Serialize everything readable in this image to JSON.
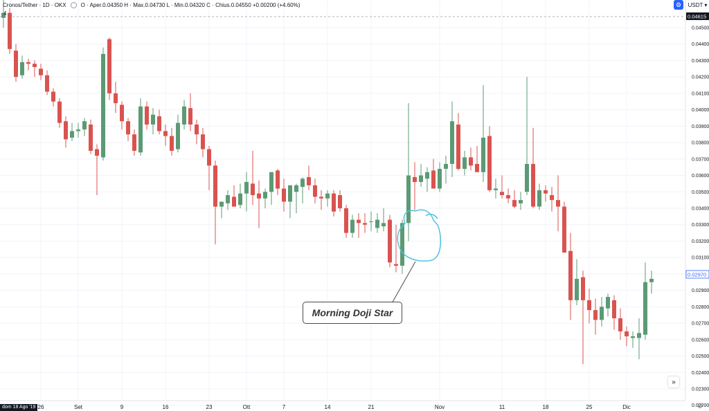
{
  "header": {
    "symbol_title": "Cronos/Tether · 1D · OKX",
    "collapse_marker": "4",
    "ohlc_summary": "O · Aper.0.04350  H · Max.0.04730  L · Min.0.04320  C · Chius.0.04550  +0.00200 (+4.60%)",
    "currency": "USDT"
  },
  "annotation": {
    "label": "Morning Doji Star",
    "circle_color": "#4fc3dc"
  },
  "colors": {
    "up": "#5b9a74",
    "down": "#d9534f",
    "grid": "#f0f3fa",
    "current_price_label": "#131722",
    "last_close_label_text": "#2962ff"
  },
  "price_labels": {
    "current": "0.04615",
    "last_close": "0.02970"
  },
  "x_axis": {
    "first_date_label": "dom 18 Ago '19"
  },
  "chart_data": {
    "type": "candlestick",
    "title": "Cronos/Tether · 1D · OKX",
    "ylim": [
      0.0222,
      0.0466
    ],
    "y_ticks": [
      "0.04500",
      "0.04400",
      "0.04300",
      "0.04200",
      "0.04100",
      "0.04000",
      "0.03900",
      "0.03800",
      "0.03700",
      "0.03600",
      "0.03500",
      "0.03400",
      "0.03300",
      "0.03200",
      "0.03100",
      "0.03000",
      "0.02900",
      "0.02800",
      "0.02700",
      "0.02600",
      "0.02500",
      "0.02400",
      "0.02300",
      "0.02200"
    ],
    "x_ticks": [
      {
        "label": "26",
        "index": 6
      },
      {
        "label": "Set",
        "index": 12
      },
      {
        "label": "9",
        "index": 19
      },
      {
        "label": "16",
        "index": 26
      },
      {
        "label": "23",
        "index": 33
      },
      {
        "label": "Ott",
        "index": 39
      },
      {
        "label": "7",
        "index": 45
      },
      {
        "label": "14",
        "index": 52
      },
      {
        "label": "21",
        "index": 59
      },
      {
        "label": "Nov",
        "index": 70
      },
      {
        "label": "11",
        "index": 80
      },
      {
        "label": "18",
        "index": 87
      },
      {
        "label": "25",
        "index": 94
      },
      {
        "label": "Dic",
        "index": 100
      }
    ],
    "candles": [
      [
        0.0456,
        0.047,
        0.045,
        0.0459
      ],
      [
        0.0459,
        0.0462,
        0.0434,
        0.0437
      ],
      [
        0.0436,
        0.044,
        0.0417,
        0.042
      ],
      [
        0.0421,
        0.0433,
        0.0419,
        0.0429
      ],
      [
        0.0429,
        0.0431,
        0.0424,
        0.0428
      ],
      [
        0.0428,
        0.043,
        0.042,
        0.0426
      ],
      [
        0.0425,
        0.0428,
        0.0418,
        0.0421
      ],
      [
        0.0421,
        0.0424,
        0.0409,
        0.0411
      ],
      [
        0.0411,
        0.0413,
        0.0402,
        0.0405
      ],
      [
        0.0405,
        0.0407,
        0.0389,
        0.0392
      ],
      [
        0.0393,
        0.0396,
        0.0377,
        0.0382
      ],
      [
        0.0383,
        0.0392,
        0.0381,
        0.0387
      ],
      [
        0.0387,
        0.0392,
        0.0383,
        0.0388
      ],
      [
        0.0388,
        0.0395,
        0.0384,
        0.0393
      ],
      [
        0.0391,
        0.0394,
        0.0373,
        0.0375
      ],
      [
        0.0376,
        0.0379,
        0.0348,
        0.0372
      ],
      [
        0.0371,
        0.0438,
        0.0369,
        0.0434
      ],
      [
        0.0443,
        0.0444,
        0.0406,
        0.041
      ],
      [
        0.041,
        0.0417,
        0.0398,
        0.0404
      ],
      [
        0.0403,
        0.0405,
        0.0388,
        0.0393
      ],
      [
        0.0393,
        0.0395,
        0.0381,
        0.0385
      ],
      [
        0.0385,
        0.0388,
        0.0372,
        0.0375
      ],
      [
        0.0374,
        0.0407,
        0.0372,
        0.0402
      ],
      [
        0.0402,
        0.0405,
        0.0388,
        0.0391
      ],
      [
        0.0391,
        0.0401,
        0.0385,
        0.0397
      ],
      [
        0.0396,
        0.04,
        0.0385,
        0.0387
      ],
      [
        0.0387,
        0.0391,
        0.0378,
        0.0384
      ],
      [
        0.0384,
        0.0389,
        0.0372,
        0.0375
      ],
      [
        0.0376,
        0.0397,
        0.0374,
        0.0392
      ],
      [
        0.0391,
        0.0406,
        0.0388,
        0.0402
      ],
      [
        0.0401,
        0.041,
        0.0387,
        0.0391
      ],
      [
        0.0391,
        0.0394,
        0.0379,
        0.0385
      ],
      [
        0.0385,
        0.0389,
        0.0371,
        0.0376
      ],
      [
        0.0376,
        0.0378,
        0.0351,
        0.0366
      ],
      [
        0.0366,
        0.0369,
        0.0318,
        0.0341
      ],
      [
        0.0341,
        0.0344,
        0.0334,
        0.0344
      ],
      [
        0.0343,
        0.0351,
        0.0339,
        0.0348
      ],
      [
        0.0347,
        0.0354,
        0.0341,
        0.0341
      ],
      [
        0.0342,
        0.0355,
        0.034,
        0.0349
      ],
      [
        0.0349,
        0.0362,
        0.0338,
        0.0356
      ],
      [
        0.0355,
        0.0375,
        0.0342,
        0.0348
      ],
      [
        0.0349,
        0.0357,
        0.0328,
        0.0346
      ],
      [
        0.0346,
        0.0352,
        0.034,
        0.035
      ],
      [
        0.035,
        0.0362,
        0.0342,
        0.0362
      ],
      [
        0.0363,
        0.0364,
        0.0348,
        0.0352
      ],
      [
        0.0352,
        0.0358,
        0.0338,
        0.0344
      ],
      [
        0.0344,
        0.0354,
        0.0334,
        0.0354
      ],
      [
        0.035,
        0.0355,
        0.0337,
        0.0354
      ],
      [
        0.0353,
        0.0359,
        0.0343,
        0.0358
      ],
      [
        0.0359,
        0.0366,
        0.0351,
        0.0354
      ],
      [
        0.0354,
        0.0358,
        0.0343,
        0.0347
      ],
      [
        0.0347,
        0.0351,
        0.0339,
        0.0346
      ],
      [
        0.0346,
        0.0351,
        0.0341,
        0.0349
      ],
      [
        0.0349,
        0.0351,
        0.0335,
        0.0338
      ],
      [
        0.0348,
        0.0351,
        0.0338,
        0.034
      ],
      [
        0.034,
        0.0342,
        0.0322,
        0.0325
      ],
      [
        0.0325,
        0.0336,
        0.0322,
        0.0333
      ],
      [
        0.0333,
        0.0337,
        0.0322,
        0.0331
      ],
      [
        0.0331,
        0.0337,
        0.0325,
        0.033
      ],
      [
        0.0332,
        0.0338,
        0.0326,
        0.0332
      ],
      [
        0.0328,
        0.0337,
        0.0325,
        0.0333
      ],
      [
        0.0329,
        0.034,
        0.0326,
        0.0331
      ],
      [
        0.0333,
        0.0336,
        0.0304,
        0.0307
      ],
      [
        0.0306,
        0.033,
        0.0301,
        0.0305
      ],
      [
        0.0305,
        0.0333,
        0.03,
        0.0331
      ],
      [
        0.0331,
        0.0404,
        0.032,
        0.036
      ],
      [
        0.0359,
        0.0368,
        0.0339,
        0.0356
      ],
      [
        0.0356,
        0.0367,
        0.0353,
        0.036
      ],
      [
        0.0358,
        0.0365,
        0.035,
        0.0362
      ],
      [
        0.0363,
        0.037,
        0.0353,
        0.0352
      ],
      [
        0.0352,
        0.0368,
        0.035,
        0.0364
      ],
      [
        0.0364,
        0.0372,
        0.0355,
        0.0367
      ],
      [
        0.0367,
        0.0405,
        0.0359,
        0.0393
      ],
      [
        0.0391,
        0.0398,
        0.0363,
        0.0364
      ],
      [
        0.0364,
        0.0375,
        0.036,
        0.0371
      ],
      [
        0.0371,
        0.0377,
        0.0363,
        0.0366
      ],
      [
        0.0367,
        0.0378,
        0.0362,
        0.0362
      ],
      [
        0.0362,
        0.0415,
        0.0356,
        0.0383
      ],
      [
        0.0384,
        0.039,
        0.035,
        0.0351
      ],
      [
        0.0351,
        0.0358,
        0.0346,
        0.0352
      ],
      [
        0.035,
        0.036,
        0.0346,
        0.0348
      ],
      [
        0.0348,
        0.0352,
        0.0343,
        0.0346
      ],
      [
        0.0345,
        0.0351,
        0.034,
        0.0341
      ],
      [
        0.0343,
        0.035,
        0.0339,
        0.0345
      ],
      [
        0.035,
        0.042,
        0.0348,
        0.0367
      ],
      [
        0.0367,
        0.0389,
        0.034,
        0.0341
      ],
      [
        0.0341,
        0.0355,
        0.0339,
        0.0351
      ],
      [
        0.0351,
        0.0354,
        0.0344,
        0.0349
      ],
      [
        0.0348,
        0.0353,
        0.0338,
        0.0345
      ],
      [
        0.0345,
        0.036,
        0.0326,
        0.0341
      ],
      [
        0.0341,
        0.0344,
        0.0313,
        0.0313
      ],
      [
        0.0314,
        0.0325,
        0.0272,
        0.0284
      ],
      [
        0.0284,
        0.0309,
        0.0281,
        0.0297
      ],
      [
        0.0298,
        0.0302,
        0.0245,
        0.0284
      ],
      [
        0.0284,
        0.0291,
        0.027,
        0.0278
      ],
      [
        0.0278,
        0.0285,
        0.0263,
        0.0272
      ],
      [
        0.0272,
        0.0286,
        0.0268,
        0.028
      ],
      [
        0.0279,
        0.0288,
        0.0274,
        0.0286
      ],
      [
        0.0284,
        0.0287,
        0.0266,
        0.0273
      ],
      [
        0.0273,
        0.0279,
        0.026,
        0.0265
      ],
      [
        0.0265,
        0.0268,
        0.0256,
        0.0262
      ],
      [
        0.0261,
        0.0265,
        0.0255,
        0.0262
      ],
      [
        0.0261,
        0.0273,
        0.0248,
        0.0264
      ],
      [
        0.0263,
        0.0307,
        0.026,
        0.0295
      ],
      [
        0.0295,
        0.0302,
        0.0288,
        0.0297
      ]
    ]
  }
}
